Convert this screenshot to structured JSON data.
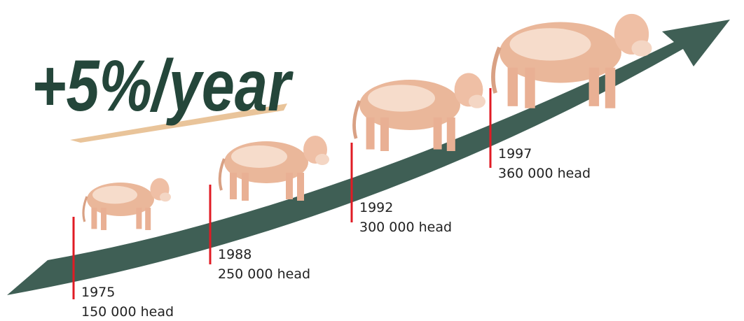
{
  "headline": "+5%/year",
  "milestones": [
    {
      "year": "1975",
      "label": "150 000 head"
    },
    {
      "year": "1988",
      "label": "250 000 head"
    },
    {
      "year": "1992",
      "label": "300 000 head"
    },
    {
      "year": "1997",
      "label": "360 000 head"
    }
  ]
}
